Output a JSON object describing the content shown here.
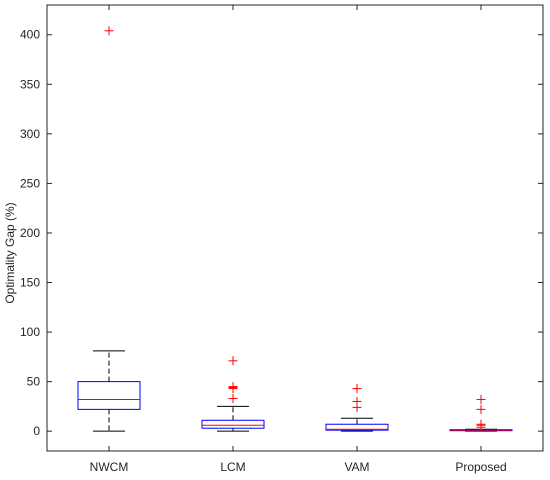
{
  "chart_data": {
    "type": "boxplot",
    "title": "",
    "xlabel": "",
    "ylabel": "Optimality Gap (%)",
    "ylim": [
      -20,
      430
    ],
    "yticks": [
      0,
      50,
      100,
      150,
      200,
      250,
      300,
      350,
      400
    ],
    "grid": false,
    "colors": {
      "box": "#0000ff",
      "median": "#ff0000",
      "whisker": "#000000",
      "outlier": "#ff0000",
      "axis": "#262626"
    },
    "categories": [
      "NWCM",
      "LCM",
      "VAM",
      "Proposed"
    ],
    "boxes": [
      {
        "category": "NWCM",
        "whisker_low": 0,
        "q1": 22,
        "median": 32,
        "q3": 50,
        "whisker_high": 81,
        "outliers": [
          404
        ]
      },
      {
        "category": "LCM",
        "whisker_low": 0,
        "q1": 3,
        "median": 6,
        "q3": 11,
        "whisker_high": 25,
        "outliers": [
          33,
          43,
          44,
          45,
          71
        ]
      },
      {
        "category": "VAM",
        "whisker_low": 0,
        "q1": 1,
        "median": 2,
        "q3": 7,
        "whisker_high": 13,
        "outliers": [
          24,
          30,
          43
        ]
      },
      {
        "category": "Proposed",
        "whisker_low": 0,
        "q1": 0.5,
        "median": 1,
        "q3": 1.5,
        "whisker_high": 2,
        "outliers": [
          4,
          6,
          7,
          22,
          32
        ]
      }
    ]
  }
}
